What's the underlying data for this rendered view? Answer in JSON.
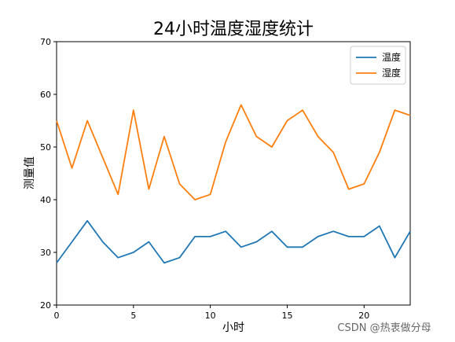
{
  "chart_data": {
    "type": "line",
    "title": "24小时温度湿度统计",
    "xlabel": "小时",
    "ylabel": "测量值",
    "x": [
      0,
      1,
      2,
      3,
      4,
      5,
      6,
      7,
      8,
      9,
      10,
      11,
      12,
      13,
      14,
      15,
      16,
      17,
      18,
      19,
      20,
      21,
      22,
      23
    ],
    "xlim": [
      0,
      23
    ],
    "ylim": [
      20,
      70
    ],
    "xticks": [
      0,
      5,
      10,
      15,
      20
    ],
    "yticks": [
      20,
      30,
      40,
      50,
      60,
      70
    ],
    "grid": false,
    "legend_position": "top-right",
    "series": [
      {
        "name": "温度",
        "color": "#1f77b4",
        "values": [
          28,
          32,
          36,
          32,
          29,
          30,
          32,
          28,
          29,
          33,
          33,
          34,
          31,
          32,
          34,
          31,
          31,
          33,
          34,
          33,
          33,
          35,
          29,
          34
        ]
      },
      {
        "name": "湿度",
        "color": "#ff7f0e",
        "values": [
          55,
          46,
          55,
          48,
          41,
          57,
          42,
          52,
          43,
          40,
          41,
          51,
          58,
          52,
          50,
          55,
          57,
          52,
          49,
          42,
          43,
          49,
          57,
          56
        ]
      }
    ]
  },
  "watermark": "CSDN @热衷做分母"
}
